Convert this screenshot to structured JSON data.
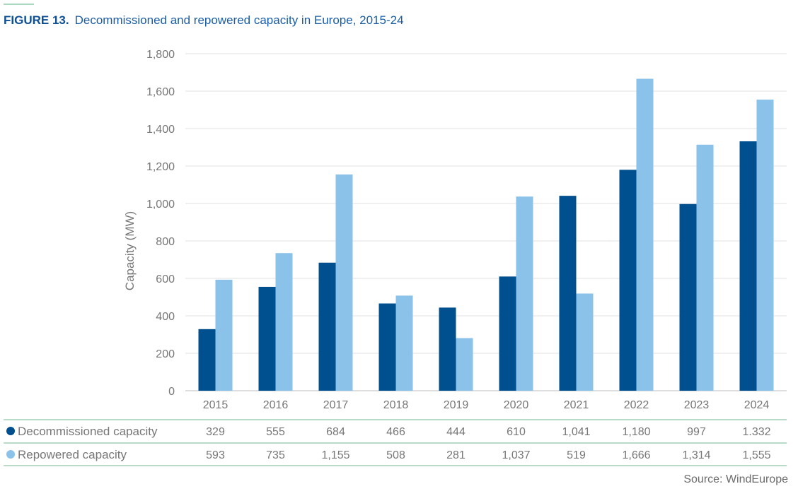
{
  "figure": {
    "label": "FIGURE 13.",
    "title": "Decommissioned and repowered capacity in Europe, 2015-24",
    "source": "Source: WindEurope"
  },
  "colors": {
    "decommissioned": "#004f8f",
    "repowered": "#8ac2ea",
    "grid": "#e2e2e2",
    "table_line": "#b9dcc8",
    "text": "#777777"
  },
  "chart_data": {
    "type": "bar",
    "title": "Decommissioned and repowered capacity in Europe, 2015-24",
    "xlabel": "",
    "ylabel": "Capacity (MW)",
    "ylim": [
      0,
      1800
    ],
    "yticks": [
      0,
      200,
      400,
      600,
      800,
      1000,
      1200,
      1400,
      1600,
      1800
    ],
    "ytick_labels": [
      "0",
      "200",
      "400",
      "600",
      "800",
      "1,000",
      "1,200",
      "1,400",
      "1,600",
      "1,800"
    ],
    "grid": true,
    "legend": "bottom-table",
    "categories": [
      "2015",
      "2016",
      "2017",
      "2018",
      "2019",
      "2020",
      "2021",
      "2022",
      "2023",
      "2024"
    ],
    "series": [
      {
        "name": "Decommissioned capacity",
        "values": [
          329,
          555,
          684,
          466,
          444,
          610,
          1041,
          1180,
          997,
          1332
        ],
        "labels": [
          "329",
          "555",
          "684",
          "466",
          "444",
          "610",
          "1,041",
          "1,180",
          "997",
          "1.332"
        ]
      },
      {
        "name": "Repowered capacity",
        "values": [
          593,
          735,
          1155,
          508,
          281,
          1037,
          519,
          1666,
          1314,
          1555
        ],
        "labels": [
          "593",
          "735",
          "1,155",
          "508",
          "281",
          "1,037",
          "519",
          "1,666",
          "1,314",
          "1,555"
        ]
      }
    ]
  }
}
